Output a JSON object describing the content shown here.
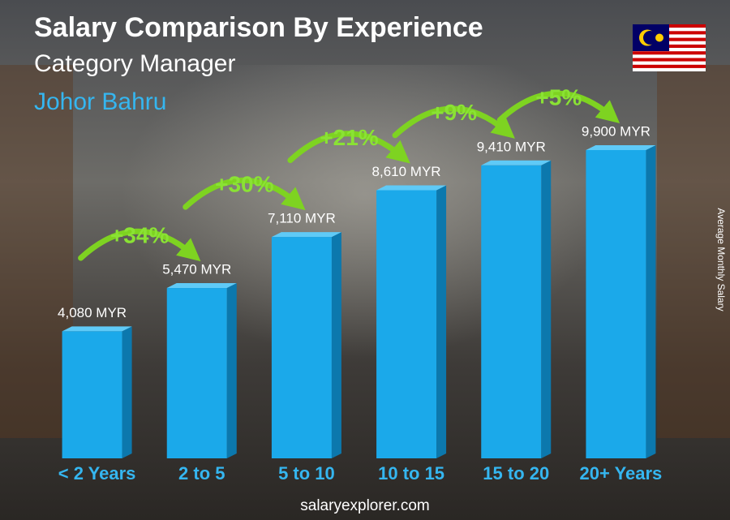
{
  "chart_data": {
    "type": "bar",
    "title": "Salary Comparison By Experience",
    "subtitle": "Category Manager",
    "location": "Johor Bahru",
    "y_label": "Average Monthly Salary",
    "footer": "salaryexplorer.com",
    "categories": [
      "< 2 Years",
      "2 to 5",
      "5 to 10",
      "10 to 15",
      "15 to 20",
      "20+ Years"
    ],
    "values": [
      4080,
      5470,
      7110,
      8610,
      9410,
      9900
    ],
    "value_labels": [
      "4,080 MYR",
      "5,470 MYR",
      "7,110 MYR",
      "8,610 MYR",
      "9,410 MYR",
      "9,900 MYR"
    ],
    "change_labels": [
      "+34%",
      "+30%",
      "+21%",
      "+9%",
      "+5%"
    ],
    "color": "#1ba9ea"
  }
}
